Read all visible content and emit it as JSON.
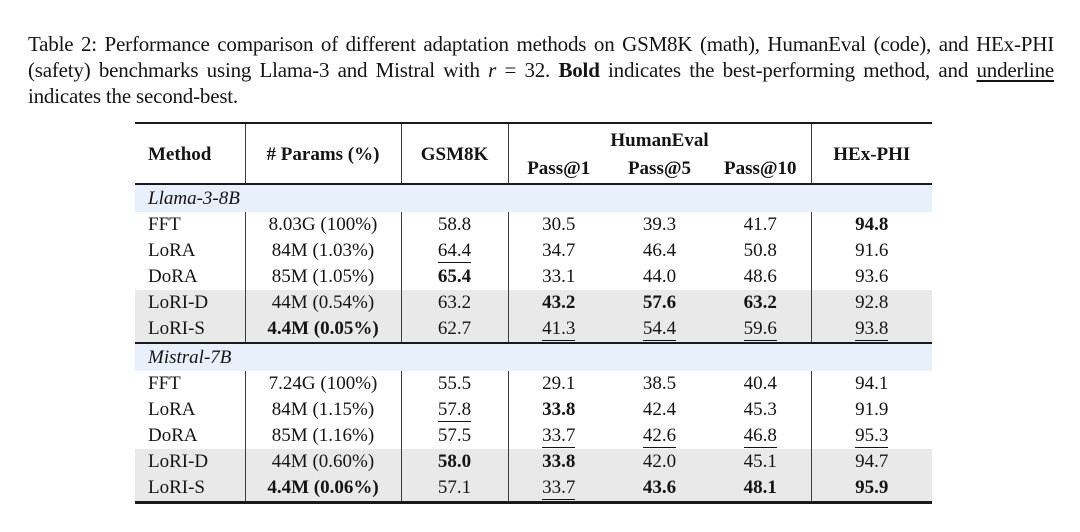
{
  "caption": {
    "segments": [
      {
        "text": "Table 2: Performance comparison of different adaptation methods on GSM8K (math), HumanEval (code), and HEx-PHI (safety) benchmarks using Llama-3 and Mistral with ",
        "style": "plain"
      },
      {
        "text": "r",
        "style": "italic"
      },
      {
        "text": " = 32. ",
        "style": "plain"
      },
      {
        "text": "Bold",
        "style": "bold"
      },
      {
        "text": " indicates the best-performing method, and ",
        "style": "plain"
      },
      {
        "text": "underline",
        "style": "underline"
      },
      {
        "text": " indicates the second-best.",
        "style": "plain"
      }
    ]
  },
  "table": {
    "headers": {
      "method": "Method",
      "params": "# Params (%)",
      "gsm8k": "GSM8K",
      "humaneval": "HumanEval",
      "pass1": "Pass@1",
      "pass5": "Pass@5",
      "pass10": "Pass@10",
      "hexphi": "HEx-PHI"
    },
    "sections": [
      {
        "name": "Llama-3-8B",
        "rows": [
          {
            "highlight": false,
            "cells": [
              {
                "text": "FFT",
                "style": "plain"
              },
              {
                "text": "8.03G (100%)",
                "style": "plain"
              },
              {
                "text": "58.8",
                "style": "plain"
              },
              {
                "text": "30.5",
                "style": "plain"
              },
              {
                "text": "39.3",
                "style": "plain"
              },
              {
                "text": "41.7",
                "style": "plain"
              },
              {
                "text": "94.8",
                "style": "bold"
              }
            ]
          },
          {
            "highlight": false,
            "cells": [
              {
                "text": "LoRA",
                "style": "plain"
              },
              {
                "text": "84M (1.03%)",
                "style": "plain"
              },
              {
                "text": "64.4",
                "style": "underline"
              },
              {
                "text": "34.7",
                "style": "plain"
              },
              {
                "text": "46.4",
                "style": "plain"
              },
              {
                "text": "50.8",
                "style": "plain"
              },
              {
                "text": "91.6",
                "style": "plain"
              }
            ]
          },
          {
            "highlight": false,
            "cells": [
              {
                "text": "DoRA",
                "style": "plain"
              },
              {
                "text": "85M (1.05%)",
                "style": "plain"
              },
              {
                "text": "65.4",
                "style": "bold"
              },
              {
                "text": "33.1",
                "style": "plain"
              },
              {
                "text": "44.0",
                "style": "plain"
              },
              {
                "text": "48.6",
                "style": "plain"
              },
              {
                "text": "93.6",
                "style": "plain"
              }
            ]
          },
          {
            "highlight": true,
            "cells": [
              {
                "text": "LoRI-D",
                "style": "plain"
              },
              {
                "text": "44M (0.54%)",
                "style": "plain"
              },
              {
                "text": "63.2",
                "style": "plain"
              },
              {
                "text": "43.2",
                "style": "bold"
              },
              {
                "text": "57.6",
                "style": "bold"
              },
              {
                "text": "63.2",
                "style": "bold"
              },
              {
                "text": "92.8",
                "style": "plain"
              }
            ]
          },
          {
            "highlight": true,
            "cells": [
              {
                "text": "LoRI-S",
                "style": "plain"
              },
              {
                "text": "4.4M (0.05%)",
                "style": "bold"
              },
              {
                "text": "62.7",
                "style": "plain"
              },
              {
                "text": "41.3",
                "style": "underline"
              },
              {
                "text": "54.4",
                "style": "underline"
              },
              {
                "text": "59.6",
                "style": "underline"
              },
              {
                "text": "93.8",
                "style": "underline"
              }
            ]
          }
        ]
      },
      {
        "name": "Mistral-7B",
        "rows": [
          {
            "highlight": false,
            "cells": [
              {
                "text": "FFT",
                "style": "plain"
              },
              {
                "text": "7.24G (100%)",
                "style": "plain"
              },
              {
                "text": "55.5",
                "style": "plain"
              },
              {
                "text": "29.1",
                "style": "plain"
              },
              {
                "text": "38.5",
                "style": "plain"
              },
              {
                "text": "40.4",
                "style": "plain"
              },
              {
                "text": "94.1",
                "style": "plain"
              }
            ]
          },
          {
            "highlight": false,
            "cells": [
              {
                "text": "LoRA",
                "style": "plain"
              },
              {
                "text": "84M (1.15%)",
                "style": "plain"
              },
              {
                "text": "57.8",
                "style": "underline"
              },
              {
                "text": "33.8",
                "style": "bold"
              },
              {
                "text": "42.4",
                "style": "plain"
              },
              {
                "text": "45.3",
                "style": "plain"
              },
              {
                "text": "91.9",
                "style": "plain"
              }
            ]
          },
          {
            "highlight": false,
            "cells": [
              {
                "text": "DoRA",
                "style": "plain"
              },
              {
                "text": "85M (1.16%)",
                "style": "plain"
              },
              {
                "text": "57.5",
                "style": "plain"
              },
              {
                "text": "33.7",
                "style": "underline"
              },
              {
                "text": "42.6",
                "style": "underline"
              },
              {
                "text": "46.8",
                "style": "underline"
              },
              {
                "text": "95.3",
                "style": "underline"
              }
            ]
          },
          {
            "highlight": true,
            "cells": [
              {
                "text": "LoRI-D",
                "style": "plain"
              },
              {
                "text": "44M (0.60%)",
                "style": "plain"
              },
              {
                "text": "58.0",
                "style": "bold"
              },
              {
                "text": "33.8",
                "style": "bold"
              },
              {
                "text": "42.0",
                "style": "plain"
              },
              {
                "text": "45.1",
                "style": "plain"
              },
              {
                "text": "94.7",
                "style": "plain"
              }
            ]
          },
          {
            "highlight": true,
            "cells": [
              {
                "text": "LoRI-S",
                "style": "plain"
              },
              {
                "text": "4.4M (0.06%)",
                "style": "bold"
              },
              {
                "text": "57.1",
                "style": "plain"
              },
              {
                "text": "33.7",
                "style": "underline"
              },
              {
                "text": "43.6",
                "style": "bold"
              },
              {
                "text": "48.1",
                "style": "bold"
              },
              {
                "text": "95.9",
                "style": "bold"
              }
            ]
          }
        ]
      }
    ]
  },
  "colors": {
    "section_row_bg": "#e7f0fb",
    "highlight_row_bg": "#e9e9e9",
    "rule_color": "#1a1a1a",
    "text_color": "#141414"
  }
}
